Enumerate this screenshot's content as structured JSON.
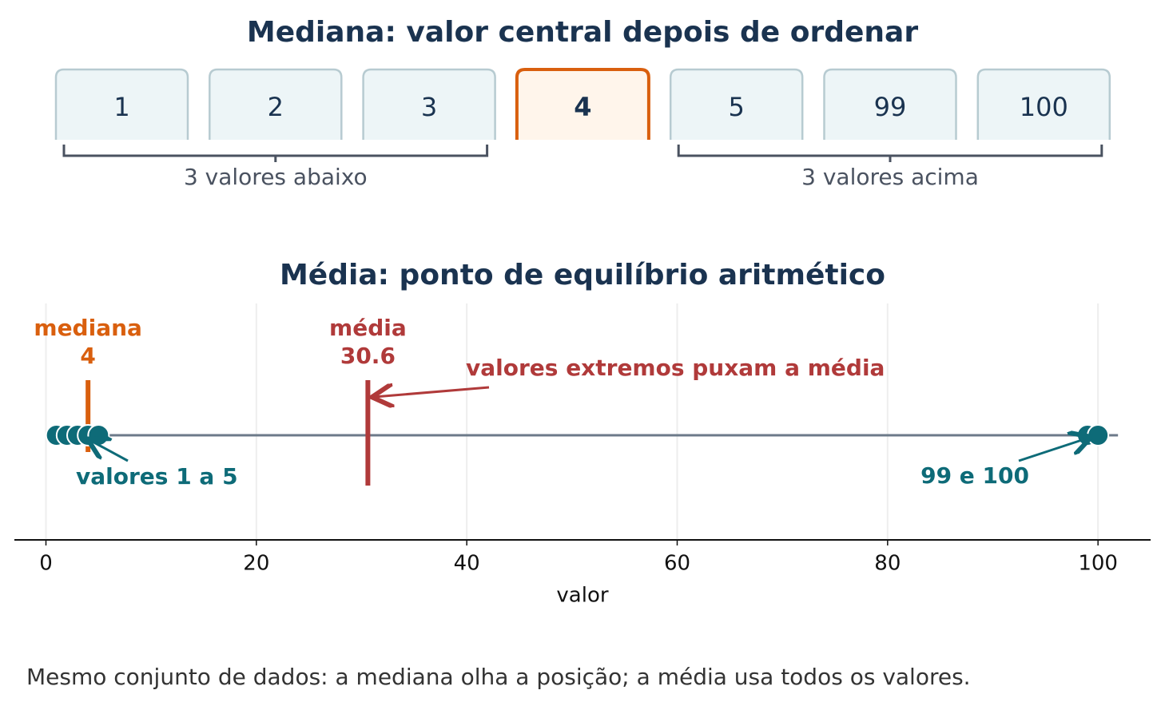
{
  "header": {
    "title": "Mediana: valor central depois de ordenar",
    "below_label": "3 valores abaixo",
    "above_label": "3 valores acima"
  },
  "chart_data": {
    "type": "strip",
    "title": "Média: ponto de equilíbrio aritmético",
    "x": [
      1,
      2,
      3,
      4,
      5,
      99,
      100
    ],
    "color": "#0e6b78",
    "xlim": [
      -3,
      105
    ],
    "xticks": [
      0,
      20,
      40,
      60,
      80,
      100
    ],
    "xlabel": "valor",
    "grid": true,
    "median": {
      "label": "mediana",
      "value": 4,
      "color": "#d95f0e"
    },
    "mean": {
      "label": "média",
      "value": 30.6,
      "color": "#b03a3a"
    },
    "annotations": {
      "extremes": "valores extremos puxam a média",
      "low": "valores 1 a 5",
      "high": "99 e 100"
    }
  },
  "footer": "Mesmo conjunto de dados: a mediana olha a posição; a média usa todos os valores."
}
